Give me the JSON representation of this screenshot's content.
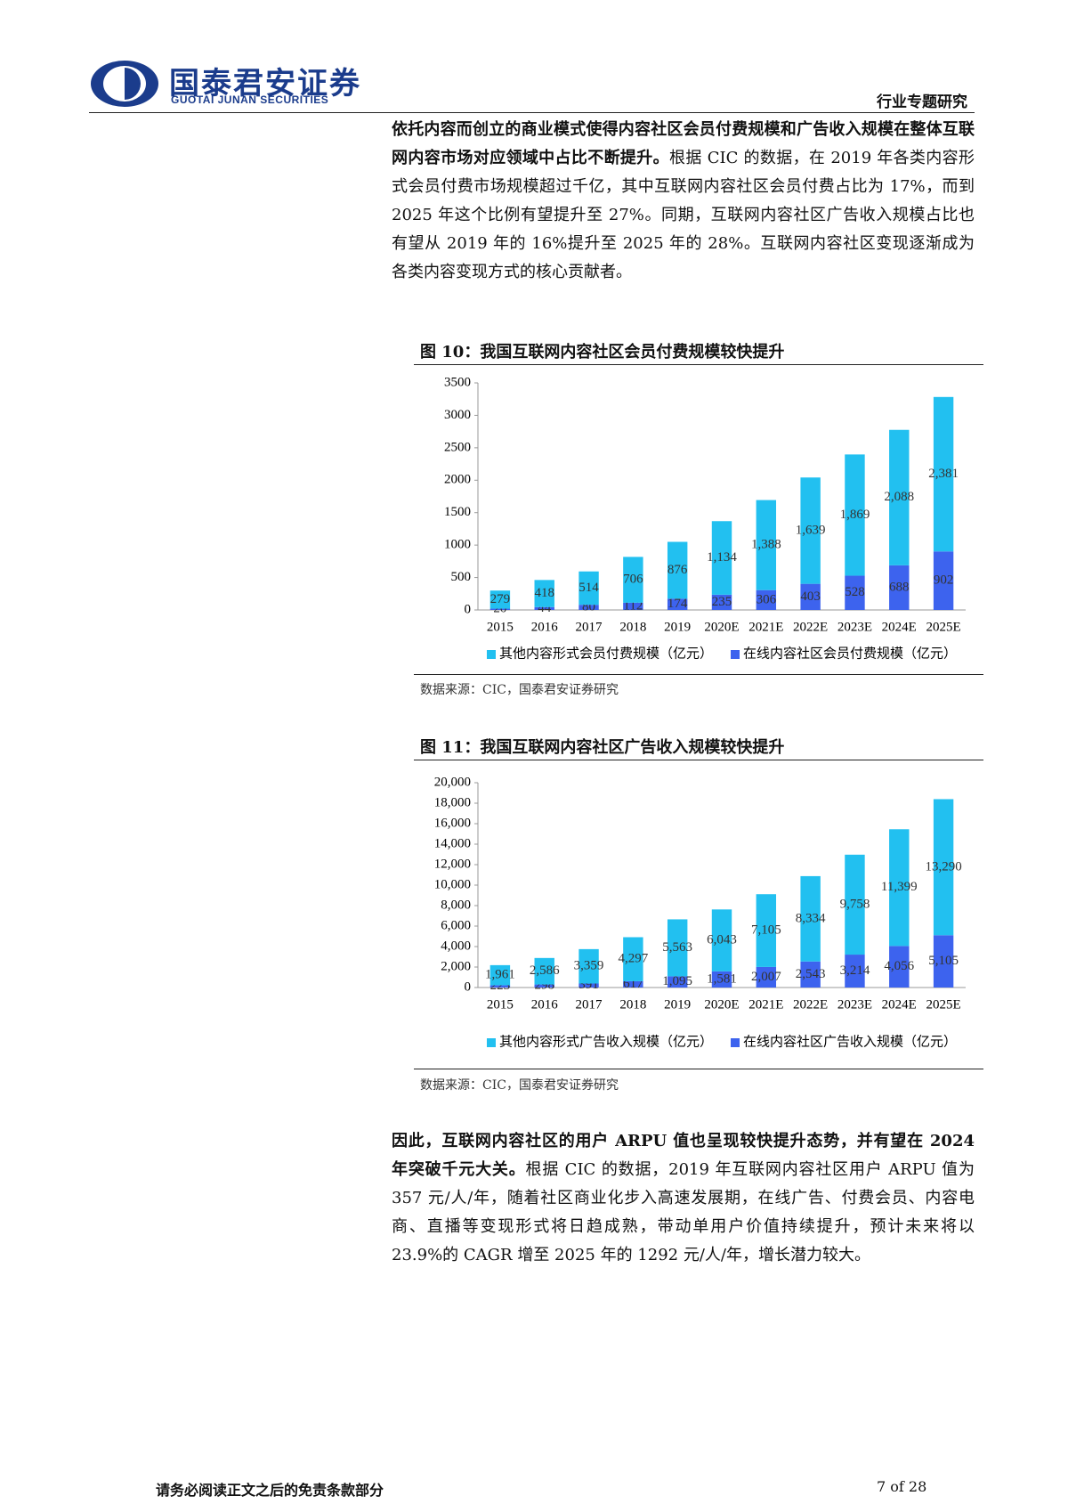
{
  "header": {
    "company": "国泰君安证券",
    "company_en": "GUOTAI JUNAN SECURITIES",
    "report_type": "行业专题研究"
  },
  "paragraphs": [
    {
      "bold": "依托内容而创立的商业模式使得内容社区会员付费规模和广告收入规模在整体互联网内容市场对应领域中占比不断提升。",
      "text": "根据 CIC 的数据，在 2019 年各类内容形式会员付费市场规模超过千亿，其中互联网内容社区会员付费占比为 17%，而到 2025 年这个比例有望提升至 27%。同期，互联网内容社区广告收入规模占比也有望从 2019 年的 16%提升至 2025 年的 28%。互联网内容社区变现逐渐成为各类内容变现方式的核心贡献者。"
    },
    {
      "bold": "因此，互联网内容社区的用户 ARPU 值也呈现较快提升态势，并有望在 2024 年突破千元大关。",
      "text": "根据 CIC 的数据，2019 年互联网内容社区用户 ARPU 值为 357 元/人/年，随着社区商业化步入高速发展期，在线广告、付费会员、内容电商、直播等变现形式将日趋成熟，带动单用户价值持续提升，预计未来将以 23.9%的 CAGR 增至 2025 年的 1292 元/人/年，增长潜力较大。"
    }
  ],
  "chart_data": [
    {
      "type": "stacked_bar",
      "title": "图 10：我国互联网内容社区会员付费规模较快提升",
      "source": "数据来源：CIC，国泰君安证券研究",
      "categories": [
        "2015",
        "2016",
        "2017",
        "2018",
        "2019",
        "2020E",
        "2021E",
        "2022E",
        "2023E",
        "2024E",
        "2025E"
      ],
      "series": [
        {
          "name": "其他内容形式会员付费规模（亿元）",
          "color": "#22c0f0",
          "values": [
            279,
            418,
            514,
            706,
            876,
            1134,
            1388,
            1639,
            1869,
            2088,
            2381
          ],
          "value_labels": [
            "279",
            "418",
            "514",
            "706",
            "876",
            "1,134",
            "1,388",
            "1,639",
            "1,869",
            "2,088",
            "2,381"
          ]
        },
        {
          "name": "在线内容社区会员付费规模（亿元）",
          "color": "#3d63ee",
          "values": [
            20,
            44,
            80,
            112,
            174,
            235,
            306,
            403,
            528,
            688,
            902
          ]
        }
      ],
      "ylim": [
        0,
        3500
      ],
      "yticks": [
        0,
        500,
        1000,
        1500,
        2000,
        2500,
        3000,
        3500
      ],
      "legend": "bottom"
    },
    {
      "type": "stacked_bar",
      "title": "图 11：我国互联网内容社区广告收入规模较快提升",
      "source": "数据来源：CIC，国泰君安证券研究",
      "categories": [
        "2015",
        "2016",
        "2017",
        "2018",
        "2019",
        "2020E",
        "2021E",
        "2022E",
        "2023E",
        "2024E",
        "2025E"
      ],
      "series": [
        {
          "name": "其他内容形式广告收入规模（亿元）",
          "color": "#22c0f0",
          "values": [
            1961,
            2586,
            3359,
            4297,
            5563,
            6043,
            7105,
            8334,
            9758,
            11399,
            13290
          ],
          "value_labels": [
            "1,961",
            "2,586",
            "3,359",
            "4,297",
            "5,563",
            "6,043",
            "7,105",
            "8,334",
            "9,758",
            "11,399",
            "13,290"
          ]
        },
        {
          "name": "在线内容社区广告收入规模（亿元）",
          "color": "#3d63ee",
          "values": [
            223,
            298,
            391,
            617,
            1095,
            1581,
            2007,
            2543,
            3214,
            4056,
            5105
          ],
          "value_labels": [
            "223",
            "298",
            "391",
            "617",
            "1,095",
            "1,581",
            "2,007",
            "2,543",
            "3,214",
            "4,056",
            "5,105"
          ]
        }
      ],
      "ylim": [
        0,
        20000
      ],
      "yticks": [
        0,
        {
          "value": 2000,
          "label": "2,000"
        },
        {
          "value": 4000,
          "label": "4,000"
        },
        {
          "value": 6000,
          "label": "6,000"
        },
        {
          "value": 8000,
          "label": "8,000"
        },
        {
          "value": 10000,
          "label": "10,000"
        },
        {
          "value": 12000,
          "label": "12,000"
        },
        {
          "value": 14000,
          "label": "14,000"
        },
        {
          "value": 16000,
          "label": "16,000"
        },
        {
          "value": 18000,
          "label": "18,000"
        },
        {
          "value": 20000,
          "label": "20,000"
        }
      ],
      "legend": "bottom"
    }
  ],
  "footer": {
    "disclaimer": "请务必阅读正文之后的免责条款部分",
    "page": "7 of 28"
  }
}
